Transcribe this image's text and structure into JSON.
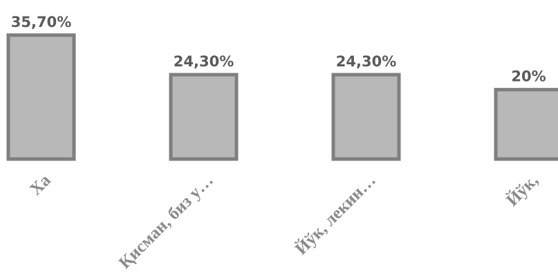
{
  "chart_data": {
    "type": "bar",
    "categories": [
      "Ха",
      "Қисман, биз у…",
      "Йўк, лекин…",
      "Йўк,"
    ],
    "values": [
      35.7,
      24.3,
      24.3,
      20
    ],
    "value_labels": [
      "35,70%",
      "24,30%",
      "24,30%",
      "20%"
    ],
    "ylim": [
      0,
      40
    ],
    "grid": false,
    "legend": "none",
    "colors": {
      "bar_fill": "#b8b8b8",
      "bar_stroke": "#7f7f7f",
      "value_text": "#5a5a5a",
      "category_text": "#8a8a8a"
    }
  }
}
